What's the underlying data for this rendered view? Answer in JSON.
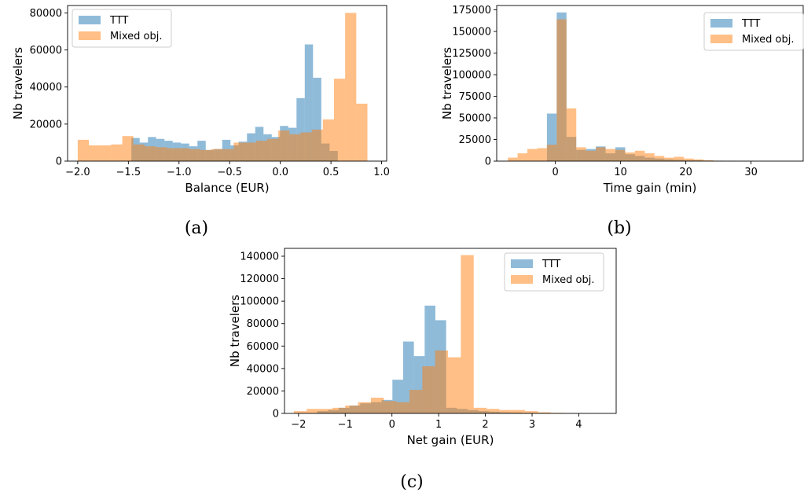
{
  "colors": {
    "ttt": "#1f77b4",
    "mixed": "#ff7f0e",
    "bar_opacity": 0.5
  },
  "chart_data": [
    {
      "type": "histogram",
      "caption": "(a)",
      "xlabel": "Balance (EUR)",
      "ylabel": "Nb travelers",
      "xlim": [
        -2.1,
        1.05
      ],
      "ylim": [
        0,
        84000
      ],
      "xticks": [
        -2.0,
        -1.5,
        -1.0,
        -0.5,
        0.0,
        0.5,
        1.0
      ],
      "xtick_labels": [
        "−2.0",
        "−1.5",
        "−1.0",
        "−0.5",
        "0.0",
        "0.5",
        "1.0"
      ],
      "yticks": [
        0,
        20000,
        40000,
        60000,
        80000
      ],
      "ytick_labels": [
        "0",
        "20000",
        "40000",
        "60000",
        "80000"
      ],
      "legend": {
        "position": "top-left",
        "entries": [
          "TTT",
          "Mixed obj."
        ]
      },
      "series": [
        {
          "name": "TTT",
          "bin_start": -1.47,
          "bin_width": 0.0815,
          "values": [
            12500,
            10000,
            13000,
            12000,
            11000,
            10000,
            9500,
            8000,
            11000,
            6000,
            6500,
            11500,
            8500,
            10500,
            15000,
            18500,
            14500,
            13000,
            19000,
            18000,
            34000,
            63000,
            45000,
            9500,
            5500
          ]
        },
        {
          "name": "Mixed obj.",
          "bin_start": -2.0,
          "bin_width": 0.11,
          "values": [
            11500,
            8500,
            8500,
            9000,
            13500,
            9000,
            8000,
            7500,
            7000,
            7000,
            6500,
            6000,
            6500,
            6500,
            10000,
            10000,
            11000,
            12000,
            16500,
            14500,
            15500,
            17000,
            22500,
            44500,
            80000,
            31000
          ]
        }
      ]
    },
    {
      "type": "histogram",
      "caption": "(b)",
      "xlabel": "Time gain (min)",
      "ylabel": "Nb travelers",
      "xlim": [
        -9,
        38
      ],
      "ylim": [
        0,
        180000
      ],
      "xticks": [
        0,
        10,
        20,
        30
      ],
      "xtick_labels": [
        "0",
        "10",
        "20",
        "30"
      ],
      "yticks": [
        0,
        25000,
        50000,
        75000,
        100000,
        125000,
        150000,
        175000
      ],
      "ytick_labels": [
        "0",
        "25000",
        "50000",
        "75000",
        "100000",
        "125000",
        "150000",
        "175000"
      ],
      "legend": {
        "position": "top-right",
        "entries": [
          "TTT",
          "Mixed obj."
        ]
      },
      "series": [
        {
          "name": "TTT",
          "bin_start": -1.3,
          "bin_width": 1.5,
          "values": [
            55000,
            172000,
            28000,
            13000,
            14000,
            17000,
            9000,
            16000,
            8000,
            6000,
            4000,
            3000,
            2000,
            1500,
            1000,
            800,
            500,
            300,
            200,
            100,
            50
          ]
        },
        {
          "name": "Mixed obj.",
          "bin_start": -7.3,
          "bin_width": 1.5,
          "values": [
            4000,
            9000,
            14000,
            15000,
            19000,
            164000,
            61000,
            16000,
            12000,
            16000,
            14000,
            13000,
            10000,
            12000,
            9000,
            6000,
            4000,
            5000,
            3000,
            2000,
            1000,
            500,
            200
          ]
        }
      ]
    },
    {
      "type": "histogram",
      "caption": "(c)",
      "xlabel": "Net gain (EUR)",
      "ylabel": "Nb travelers",
      "xlim": [
        -2.3,
        4.8
      ],
      "ylim": [
        0,
        147000
      ],
      "xticks": [
        -2,
        -1,
        0,
        1,
        2,
        3,
        4
      ],
      "xtick_labels": [
        "−2",
        "−1",
        "0",
        "1",
        "2",
        "3",
        "4"
      ],
      "yticks": [
        0,
        20000,
        40000,
        60000,
        80000,
        100000,
        120000,
        140000
      ],
      "ytick_labels": [
        "0",
        "20000",
        "40000",
        "60000",
        "80000",
        "100000",
        "120000",
        "140000"
      ],
      "legend": {
        "position": "top-right",
        "entries": [
          "TTT",
          "Mixed obj."
        ]
      },
      "series": [
        {
          "name": "TTT",
          "bin_start": -1.6,
          "bin_width": 0.23,
          "values": [
            2000,
            3000,
            5000,
            7000,
            9000,
            10000,
            12000,
            30000,
            64000,
            51000,
            96000,
            83000,
            5000,
            4000,
            3000,
            2000,
            1500,
            1000,
            800,
            500,
            300,
            200,
            100,
            50
          ]
        },
        {
          "name": "Mixed obj.",
          "bin_start": -2.1,
          "bin_width": 0.275,
          "values": [
            2000,
            4000,
            4000,
            5000,
            7000,
            10000,
            14000,
            11000,
            10000,
            21000,
            42000,
            56000,
            50000,
            141000,
            5000,
            4000,
            3000,
            3000,
            2000,
            1000,
            500,
            300,
            200,
            100
          ]
        }
      ]
    }
  ]
}
